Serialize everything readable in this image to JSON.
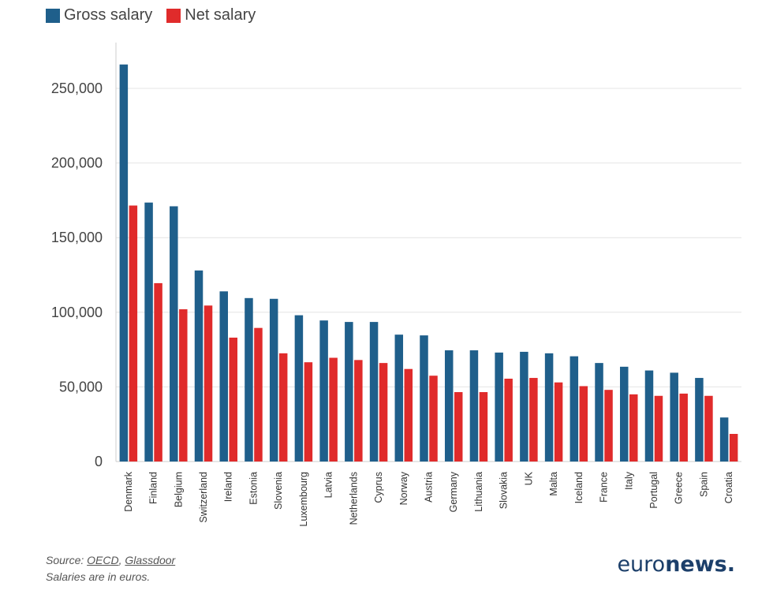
{
  "legend": {
    "gross_label": "Gross salary",
    "net_label": "Net salary",
    "gross_color": "#1f5f8b",
    "net_color": "#e02b2b"
  },
  "footer": {
    "source_prefix": "Source: ",
    "source_oecd": "OECD",
    "source_sep": ", ",
    "source_glassdoor": "Glassdoor",
    "note": "Salaries are in euros."
  },
  "logo": {
    "part1": "euro",
    "part2": "news."
  },
  "chart_data": {
    "type": "bar",
    "title": "",
    "xlabel": "",
    "ylabel": "",
    "ylim": [
      0,
      275000
    ],
    "yticks": [
      0,
      50000,
      100000,
      150000,
      200000,
      250000
    ],
    "ytick_labels": [
      "0",
      "50,000",
      "100,000",
      "150,000",
      "200,000",
      "250,000"
    ],
    "grid": true,
    "legend_position": "top-left",
    "categories": [
      "Denmark",
      "Finland",
      "Belgium",
      "Switzerland",
      "Ireland",
      "Estonia",
      "Slovenia",
      "Luxembourg",
      "Latvia",
      "Netherlands",
      "Cyprus",
      "Norway",
      "Austria",
      "Germany",
      "Lithuania",
      "Slovakia",
      "UK",
      "Malta",
      "Iceland",
      "France",
      "Italy",
      "Portugal",
      "Greece",
      "Spain",
      "Croatia"
    ],
    "series": [
      {
        "name": "Gross salary",
        "color": "#1f5f8b",
        "values": [
          266000,
          173500,
          171000,
          128000,
          114000,
          109500,
          109000,
          98000,
          94500,
          93500,
          93500,
          85000,
          84500,
          74500,
          74500,
          73000,
          73500,
          72500,
          70500,
          66000,
          63500,
          61000,
          59500,
          56000,
          29500
        ]
      },
      {
        "name": "Net salary",
        "color": "#e02b2b",
        "values": [
          171500,
          119500,
          102000,
          104500,
          83000,
          89500,
          72500,
          66500,
          69500,
          68000,
          66000,
          62000,
          57500,
          46500,
          46500,
          55500,
          56000,
          53000,
          50500,
          48000,
          45000,
          44000,
          45500,
          44000,
          18500
        ]
      }
    ]
  }
}
